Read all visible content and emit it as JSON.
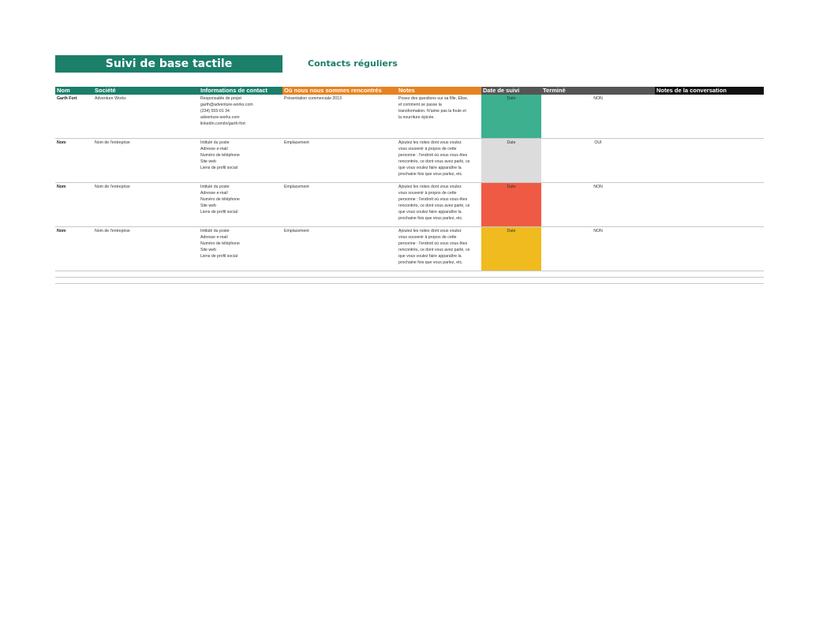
{
  "header": {
    "title": "Suivi de base tactile",
    "subtitle": "Contacts réguliers"
  },
  "columns": [
    "Nom",
    "Société",
    "Informations de contact",
    "Où nous nous sommes rencontrés",
    "Notes",
    "Date de suivi",
    "Terminé",
    "Notes de la conversation"
  ],
  "rows": [
    {
      "name": "Garth Fort",
      "company": "Adventure Works",
      "contact": [
        "Responsable de projet",
        "garth@adventure-works.com",
        "(234) 555-01 34",
        "adventure-works.com",
        "linkedin.com/in/garth-fort"
      ],
      "met": "Présentation commerciale 2013",
      "notes": [
        "Posez des questions sur sa fille, Elise,",
        "et comment se passe la",
        "transformation. N'aime pas la foule et",
        "la nourriture épicée."
      ],
      "date": "Date",
      "date_color": "#3db08f",
      "done": "NON",
      "conversation": ""
    },
    {
      "name": "Nom",
      "company": "Nom de l'entreprise",
      "contact": [
        "Intitulé du poste",
        "Adresse e-mail",
        "Numéro de téléphone",
        "Site web",
        "Liens de profil social"
      ],
      "met": "Emplacement",
      "notes": [
        "Ajoutez les notes dont vous voulez",
        "vous souvenir à propos de cette",
        "personne : l'endroit où vous vous êtes",
        "rencontrés, ce dont vous avez parlé, ce",
        "que vous voulez faire apparaître la",
        "prochaine fois que vous parlez, etc."
      ],
      "date": "Date",
      "date_color": "#dcdcdc",
      "done": "OUI",
      "conversation": ""
    },
    {
      "name": "Nom",
      "company": "Nom de l'entreprise",
      "contact": [
        "Intitulé du poste",
        "Adresse e-mail",
        "Numéro de téléphone",
        "Site web",
        "Liens de profil social"
      ],
      "met": "Emplacement",
      "notes": [
        "Ajoutez les notes dont vous voulez",
        "vous souvenir à propos de cette",
        "personne : l'endroit où vous vous êtes",
        "rencontrés, ce dont vous avez parlé, ce",
        "que vous voulez faire apparaître la",
        "prochaine fois que vous parlez, etc."
      ],
      "date": "Date",
      "date_color": "#ef5a45",
      "done": "NON",
      "conversation": ""
    },
    {
      "name": "Nom",
      "company": "Nom de l'entreprise",
      "contact": [
        "Intitulé du poste",
        "Adresse e-mail",
        "Numéro de téléphone",
        "Site web",
        "Liens de profil social"
      ],
      "met": "Emplacement",
      "notes": [
        "Ajoutez les notes dont vous voulez",
        "vous souvenir à propos de cette",
        "personne : l'endroit où vous vous êtes",
        "rencontrés, ce dont vous avez parlé, ce",
        "que vous voulez faire apparaître la",
        "prochaine fois que vous parlez, etc."
      ],
      "date": "Date",
      "date_color": "#efbb1e",
      "done": "NON",
      "conversation": ""
    }
  ]
}
